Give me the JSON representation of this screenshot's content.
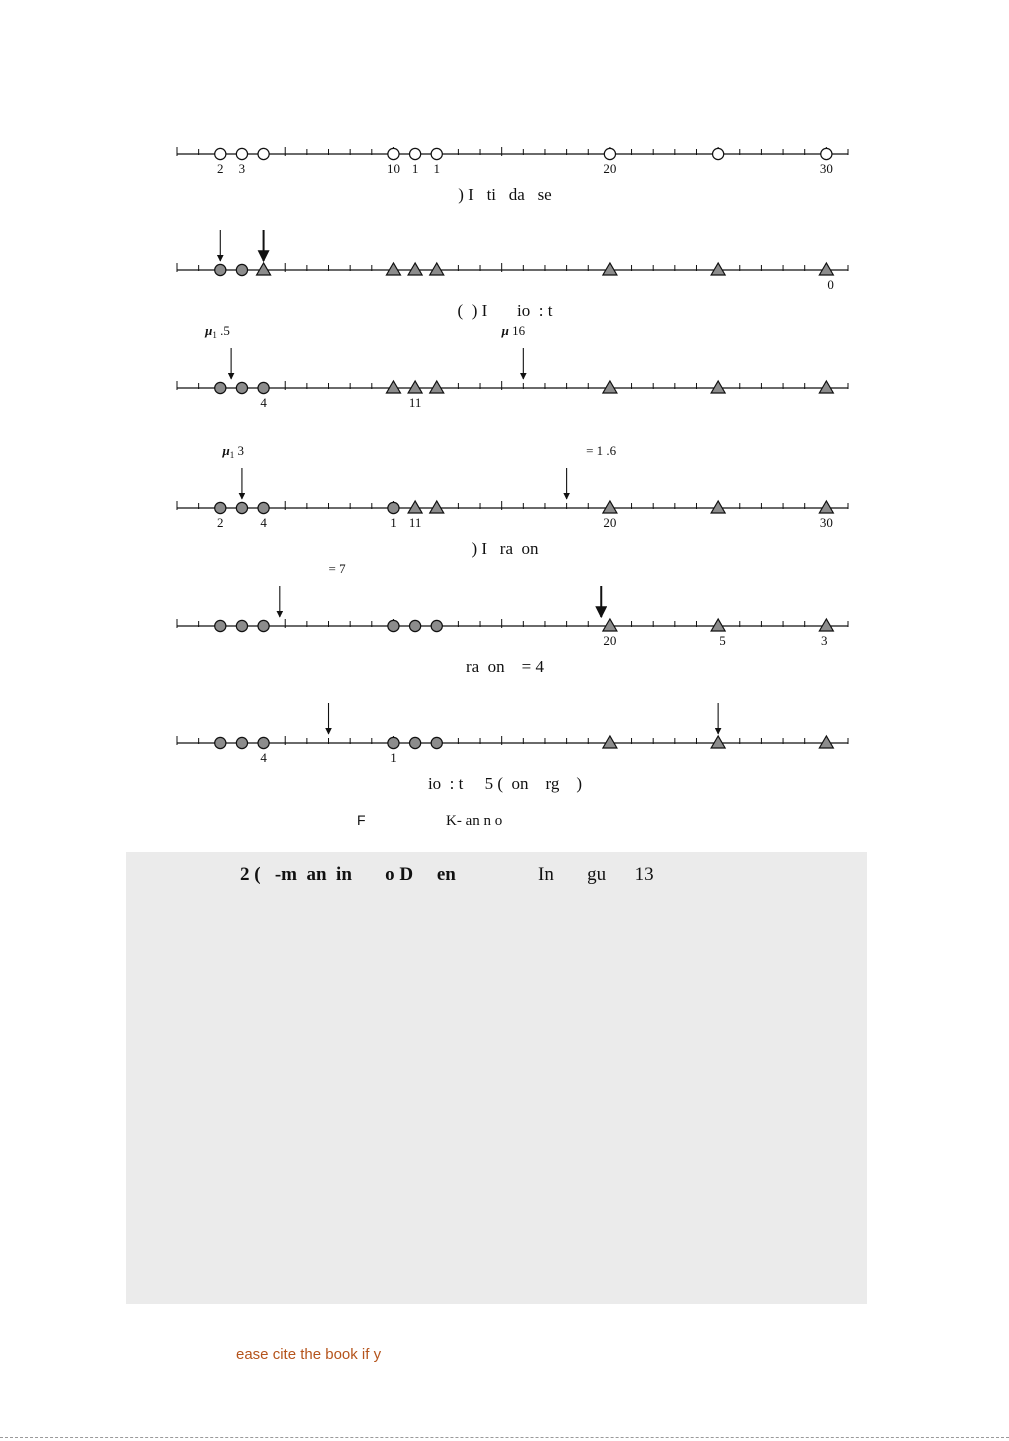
{
  "number_lines": [
    {
      "caption": ") I   ti   da   se",
      "points": [
        {
          "x": 2,
          "shape": "circle",
          "fill": "open"
        },
        {
          "x": 3,
          "shape": "circle",
          "fill": "open"
        },
        {
          "x": 4,
          "shape": "circle",
          "fill": "open"
        },
        {
          "x": 10,
          "shape": "circle",
          "fill": "open"
        },
        {
          "x": 11,
          "shape": "circle",
          "fill": "open"
        },
        {
          "x": 12,
          "shape": "circle",
          "fill": "open"
        },
        {
          "x": 20,
          "shape": "circle",
          "fill": "open"
        },
        {
          "x": 25,
          "shape": "circle",
          "fill": "open"
        },
        {
          "x": 30,
          "shape": "circle",
          "fill": "open"
        }
      ],
      "labels": [
        {
          "x": 2,
          "text": "2"
        },
        {
          "x": 3,
          "text": "3"
        },
        {
          "x": 10,
          "text": "10"
        },
        {
          "x": 11,
          "text": "1"
        },
        {
          "x": 12,
          "text": "1"
        },
        {
          "x": 20,
          "text": "20"
        },
        {
          "x": 30,
          "text": "30"
        }
      ],
      "arrows": [],
      "annotations": []
    },
    {
      "caption": "(  ) I       io  : t",
      "points": [
        {
          "x": 2,
          "shape": "circle",
          "fill": "gray"
        },
        {
          "x": 3,
          "shape": "circle",
          "fill": "gray"
        },
        {
          "x": 4,
          "shape": "triangle",
          "fill": "gray"
        },
        {
          "x": 10,
          "shape": "triangle",
          "fill": "gray"
        },
        {
          "x": 11,
          "shape": "triangle",
          "fill": "gray"
        },
        {
          "x": 12,
          "shape": "triangle",
          "fill": "gray"
        },
        {
          "x": 20,
          "shape": "triangle",
          "fill": "gray"
        },
        {
          "x": 25,
          "shape": "triangle",
          "fill": "gray"
        },
        {
          "x": 30,
          "shape": "triangle",
          "fill": "gray"
        }
      ],
      "labels": [
        {
          "x": 30.2,
          "text": "0"
        }
      ],
      "arrows": [
        {
          "x": 2,
          "bold": false
        },
        {
          "x": 4,
          "bold": true
        }
      ],
      "annotations": []
    },
    {
      "caption": "",
      "points": [
        {
          "x": 2,
          "shape": "circle",
          "fill": "gray"
        },
        {
          "x": 3,
          "shape": "circle",
          "fill": "gray"
        },
        {
          "x": 4,
          "shape": "circle",
          "fill": "gray"
        },
        {
          "x": 10,
          "shape": "triangle",
          "fill": "gray"
        },
        {
          "x": 11,
          "shape": "triangle",
          "fill": "gray"
        },
        {
          "x": 12,
          "shape": "triangle",
          "fill": "gray"
        },
        {
          "x": 20,
          "shape": "triangle",
          "fill": "gray"
        },
        {
          "x": 25,
          "shape": "triangle",
          "fill": "gray"
        },
        {
          "x": 30,
          "shape": "triangle",
          "fill": "gray"
        }
      ],
      "labels": [
        {
          "x": 4,
          "text": "4"
        },
        {
          "x": 11,
          "text": "11"
        }
      ],
      "arrows": [
        {
          "x": 2.5,
          "bold": false
        },
        {
          "x": 16,
          "bold": false
        }
      ],
      "annotations": [
        {
          "x": 1.3,
          "mu": "μ",
          "sub": "1",
          "text": "   .5"
        },
        {
          "x": 15,
          "mu": "μ",
          "sub": "",
          "text": "    16"
        }
      ]
    },
    {
      "caption": ") I   ra  on",
      "points": [
        {
          "x": 2,
          "shape": "circle",
          "fill": "gray"
        },
        {
          "x": 3,
          "shape": "circle",
          "fill": "gray"
        },
        {
          "x": 4,
          "shape": "circle",
          "fill": "gray"
        },
        {
          "x": 10,
          "shape": "circle",
          "fill": "gray"
        },
        {
          "x": 11,
          "shape": "triangle",
          "fill": "gray"
        },
        {
          "x": 12,
          "shape": "triangle",
          "fill": "gray"
        },
        {
          "x": 20,
          "shape": "triangle",
          "fill": "gray"
        },
        {
          "x": 25,
          "shape": "triangle",
          "fill": "gray"
        },
        {
          "x": 30,
          "shape": "triangle",
          "fill": "gray"
        }
      ],
      "labels": [
        {
          "x": 2,
          "text": "2"
        },
        {
          "x": 4,
          "text": "4"
        },
        {
          "x": 10,
          "text": "1"
        },
        {
          "x": 11,
          "text": "11"
        },
        {
          "x": 20,
          "text": "20"
        },
        {
          "x": 30,
          "text": "30"
        }
      ],
      "arrows": [
        {
          "x": 3,
          "bold": false
        },
        {
          "x": 18,
          "bold": false
        }
      ],
      "annotations": [
        {
          "x": 2.1,
          "mu": "μ",
          "sub": "1",
          "text": "    3"
        },
        {
          "x": 18.9,
          "mu": "",
          "sub": "",
          "text": "= 1   .6"
        }
      ]
    },
    {
      "caption": "ra  on    = 4",
      "points": [
        {
          "x": 2,
          "shape": "circle",
          "fill": "gray"
        },
        {
          "x": 3,
          "shape": "circle",
          "fill": "gray"
        },
        {
          "x": 4,
          "shape": "circle",
          "fill": "gray"
        },
        {
          "x": 10,
          "shape": "circle",
          "fill": "gray"
        },
        {
          "x": 11,
          "shape": "circle",
          "fill": "gray"
        },
        {
          "x": 12,
          "shape": "circle",
          "fill": "gray"
        },
        {
          "x": 20,
          "shape": "triangle",
          "fill": "gray"
        },
        {
          "x": 25,
          "shape": "triangle",
          "fill": "gray"
        },
        {
          "x": 30,
          "shape": "triangle",
          "fill": "gray"
        }
      ],
      "labels": [
        {
          "x": 20,
          "text": "20"
        },
        {
          "x": 25.2,
          "text": "5"
        },
        {
          "x": 29.9,
          "text": "3"
        }
      ],
      "arrows": [
        {
          "x": 4.75,
          "bold": false
        },
        {
          "x": 19.6,
          "bold": true
        }
      ],
      "annotations": [
        {
          "x": 7,
          "mu": "",
          "sub": "",
          "text": "= 7"
        }
      ]
    },
    {
      "caption": "io  : t     5 (  on    rg    )",
      "points": [
        {
          "x": 2,
          "shape": "circle",
          "fill": "gray"
        },
        {
          "x": 3,
          "shape": "circle",
          "fill": "gray"
        },
        {
          "x": 4,
          "shape": "circle",
          "fill": "gray"
        },
        {
          "x": 10,
          "shape": "circle",
          "fill": "gray"
        },
        {
          "x": 11,
          "shape": "circle",
          "fill": "gray"
        },
        {
          "x": 12,
          "shape": "circle",
          "fill": "gray"
        },
        {
          "x": 20,
          "shape": "triangle",
          "fill": "gray"
        },
        {
          "x": 25,
          "shape": "triangle",
          "fill": "gray"
        },
        {
          "x": 30,
          "shape": "triangle",
          "fill": "gray"
        }
      ],
      "labels": [
        {
          "x": 4,
          "text": "4"
        },
        {
          "x": 10,
          "text": "1"
        }
      ],
      "arrows": [
        {
          "x": 7,
          "bold": false
        },
        {
          "x": 25,
          "bold": false
        }
      ],
      "annotations": []
    }
  ],
  "figure_caption": {
    "prefix": "F",
    "text": "K-    an    n o"
  },
  "example": {
    "title": "2 (   -m  an  in       o D     en",
    "reference": "In       gu      13"
  },
  "footer_note": "ease cite the book if y",
  "colors": {
    "marker_fill": "#8c8c8c",
    "example_bg": "#ebebeb",
    "footer_text": "#b5541c"
  }
}
